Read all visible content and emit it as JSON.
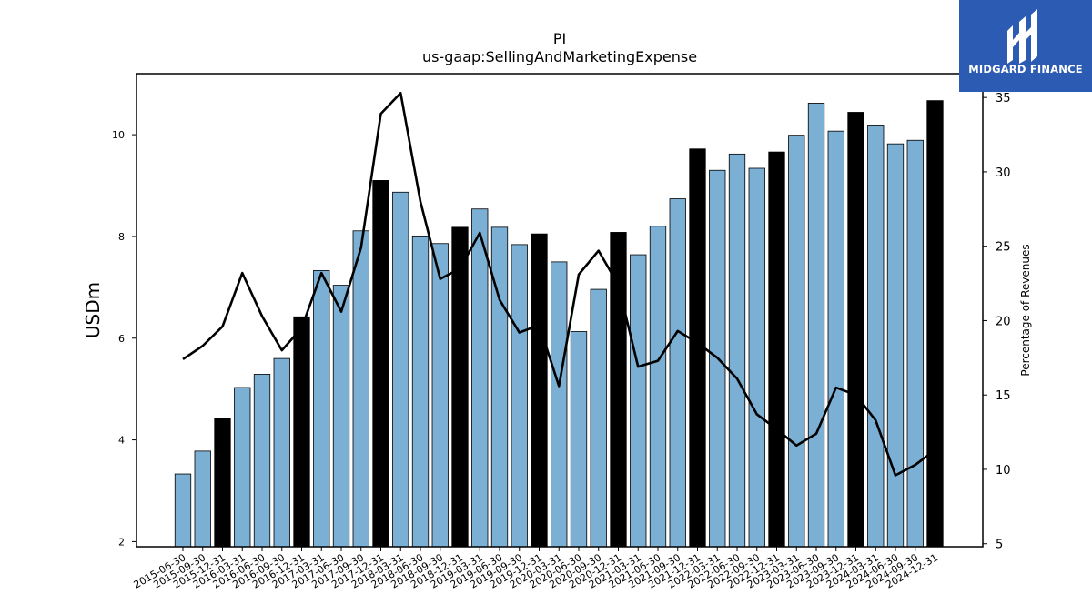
{
  "title": "PI",
  "subtitle": "us-gaap:SellingAndMarketingExpense",
  "logo": {
    "text": "MIDGARD FINANCE",
    "bg_color": "#2b5bb3",
    "name": "midgard-logo"
  },
  "chart_data": {
    "type": "bar",
    "ylabel": "USDm",
    "y2label": "Percentage of Revenues",
    "ylim": [
      1.9,
      11.2
    ],
    "y2lim": [
      4.8,
      36.6
    ],
    "yticks": [
      2,
      4,
      6,
      8,
      10
    ],
    "y2ticks": [
      5,
      10,
      15,
      20,
      25,
      30,
      35
    ],
    "categories": [
      "2015-06-30",
      "2015-09-30",
      "2015-12-31",
      "2016-03-31",
      "2016-06-30",
      "2016-09-30",
      "2016-12-31",
      "2017-03-31",
      "2017-06-30",
      "2017-09-30",
      "2017-12-31",
      "2018-03-31",
      "2018-06-30",
      "2018-09-30",
      "2018-12-31",
      "2019-03-31",
      "2019-06-30",
      "2019-09-30",
      "2019-12-31",
      "2020-03-31",
      "2020-06-30",
      "2020-09-30",
      "2020-12-31",
      "2021-03-31",
      "2021-06-30",
      "2021-09-30",
      "2021-12-31",
      "2022-03-31",
      "2022-06-30",
      "2022-09-30",
      "2022-12-31",
      "2023-03-31",
      "2023-06-30",
      "2023-09-30",
      "2023-12-31",
      "2024-03-31",
      "2024-06-30",
      "2024-09-30",
      "2024-12-31"
    ],
    "series": [
      {
        "type": "bar",
        "values": [
          3.33,
          3.78,
          4.43,
          5.03,
          5.29,
          5.6,
          6.42,
          7.33,
          7.04,
          8.11,
          9.1,
          8.87,
          8.01,
          7.86,
          8.18,
          8.54,
          8.18,
          7.84,
          8.05,
          7.5,
          6.13,
          6.96,
          8.08,
          7.64,
          8.2,
          8.74,
          9.72,
          9.3,
          9.62,
          9.34,
          9.66,
          9.99,
          10.62,
          10.07,
          10.44,
          10.19,
          9.82,
          9.89,
          10.67
        ],
        "colors": {
          "default": "#7bafd4",
          "year_end": "#000000"
        }
      },
      {
        "type": "line",
        "axis": "right",
        "color": "#000000",
        "values": [
          17.4,
          18.3,
          19.6,
          23.2,
          20.3,
          18.0,
          19.5,
          23.2,
          20.6,
          24.9,
          33.9,
          35.3,
          28.0,
          22.8,
          23.5,
          25.9,
          21.4,
          19.2,
          19.7,
          15.6,
          23.1,
          24.7,
          22.4,
          16.9,
          17.3,
          19.3,
          18.5,
          17.5,
          16.1,
          13.7,
          12.7,
          11.6,
          12.4,
          15.5,
          15.0,
          13.3,
          9.6,
          10.3,
          11.3
        ]
      }
    ],
    "grid": false
  }
}
